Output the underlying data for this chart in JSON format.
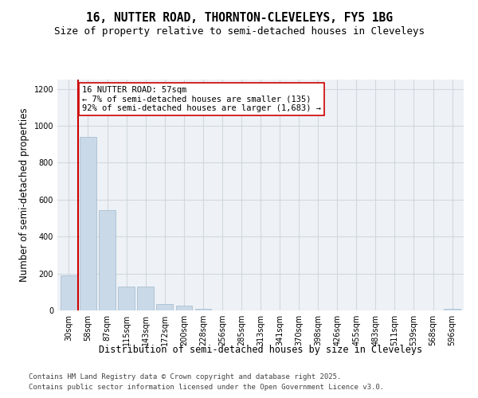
{
  "title_line1": "16, NUTTER ROAD, THORNTON-CLEVELEYS, FY5 1BG",
  "title_line2": "Size of property relative to semi-detached houses in Cleveleys",
  "xlabel": "Distribution of semi-detached houses by size in Cleveleys",
  "ylabel": "Number of semi-detached properties",
  "categories": [
    "30sqm",
    "58sqm",
    "87sqm",
    "115sqm",
    "143sqm",
    "172sqm",
    "200sqm",
    "228sqm",
    "256sqm",
    "285sqm",
    "313sqm",
    "341sqm",
    "370sqm",
    "398sqm",
    "426sqm",
    "455sqm",
    "483sqm",
    "511sqm",
    "539sqm",
    "568sqm",
    "596sqm"
  ],
  "values": [
    190,
    940,
    545,
    130,
    130,
    35,
    28,
    10,
    0,
    0,
    0,
    0,
    0,
    0,
    0,
    0,
    0,
    0,
    0,
    0,
    10
  ],
  "bar_color": "#c9d9e8",
  "bar_edge_color": "#a0b8cc",
  "annotation_text": "16 NUTTER ROAD: 57sqm\n← 7% of semi-detached houses are smaller (135)\n92% of semi-detached houses are larger (1,683) →",
  "annotation_box_color": "#ffffff",
  "annotation_box_edge": "#cc0000",
  "vline_color": "#cc0000",
  "ylim": [
    0,
    1250
  ],
  "yticks": [
    0,
    200,
    400,
    600,
    800,
    1000,
    1200
  ],
  "grid_color": "#d0d8e0",
  "bg_color": "#eef2f6",
  "footer_line1": "Contains HM Land Registry data © Crown copyright and database right 2025.",
  "footer_line2": "Contains public sector information licensed under the Open Government Licence v3.0.",
  "title_fontsize": 10.5,
  "subtitle_fontsize": 9,
  "tick_fontsize": 7,
  "ylabel_fontsize": 8.5,
  "xlabel_fontsize": 8.5,
  "annotation_fontsize": 7.5,
  "footer_fontsize": 6.5
}
